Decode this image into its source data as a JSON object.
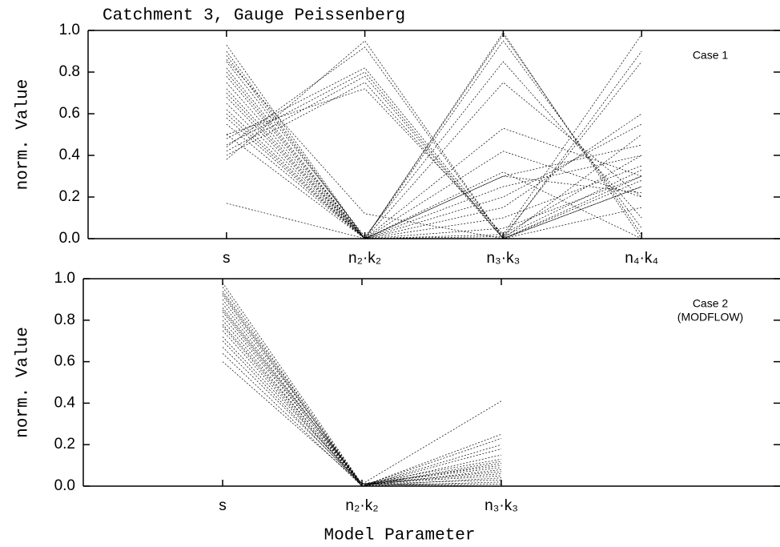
{
  "chart_data": [
    {
      "type": "parallel",
      "title": "Catchment 3, Gauge Peissenberg",
      "ylabel": "norm. Value",
      "annotation": [
        "Case 1"
      ],
      "categories": [
        "s",
        "n₂·k₂",
        "n₃·k₃",
        "n₄·k₄"
      ],
      "color": "#000000",
      "ylim": [
        0,
        1
      ],
      "yticks": [
        {
          "value": 0,
          "label": "0.0"
        },
        {
          "value": 0.2,
          "label": "0.2"
        },
        {
          "value": 0.4,
          "label": "0.4"
        },
        {
          "value": 0.6,
          "label": "0.6"
        },
        {
          "value": 0.8,
          "label": "0.8"
        },
        {
          "value": 1,
          "label": "1.0"
        }
      ],
      "series": [
        {
          "values": [
            0.93,
            0.0,
            0.99,
            0.0
          ]
        },
        {
          "values": [
            0.9,
            0.0,
            0.98,
            0.02
          ]
        },
        {
          "values": [
            0.88,
            0.0,
            0.95,
            0.05
          ]
        },
        {
          "values": [
            0.85,
            0.01,
            0.85,
            0.1
          ]
        },
        {
          "values": [
            0.82,
            0.0,
            0.75,
            0.2
          ]
        },
        {
          "values": [
            0.8,
            0.0,
            0.53,
            0.3
          ]
        },
        {
          "values": [
            0.78,
            0.0,
            0.32,
            0.0
          ]
        },
        {
          "values": [
            0.75,
            0.0,
            0.3,
            0.45
          ]
        },
        {
          "values": [
            0.72,
            0.0,
            0.2,
            0.55
          ]
        },
        {
          "values": [
            0.7,
            0.0,
            0.1,
            0.35
          ]
        },
        {
          "values": [
            0.68,
            0.0,
            0.05,
            0.3
          ]
        },
        {
          "values": [
            0.65,
            0.0,
            0.0,
            0.25
          ]
        },
        {
          "values": [
            0.62,
            0.0,
            0.02,
            0.98
          ]
        },
        {
          "values": [
            0.6,
            0.0,
            0.01,
            0.85
          ]
        },
        {
          "values": [
            0.58,
            0.0,
            0.15,
            0.6
          ]
        },
        {
          "values": [
            0.55,
            0.0,
            0.25,
            0.4
          ]
        },
        {
          "values": [
            0.5,
            0.0,
            0.42,
            0.2
          ]
        },
        {
          "values": [
            0.45,
            0.8,
            0.0,
            0.3
          ]
        },
        {
          "values": [
            0.42,
            0.78,
            0.0,
            0.28
          ]
        },
        {
          "values": [
            0.48,
            0.82,
            0.01,
            0.33
          ]
        },
        {
          "values": [
            0.4,
            0.75,
            0.0,
            0.5
          ]
        },
        {
          "values": [
            0.44,
            0.92,
            0.0,
            0.25
          ]
        },
        {
          "values": [
            0.5,
            0.72,
            0.02,
            0.4
          ]
        },
        {
          "values": [
            0.38,
            0.95,
            0.0,
            0.15
          ]
        },
        {
          "values": [
            0.17,
            0.0,
            0.3,
            0.22
          ]
        },
        {
          "values": [
            0.86,
            0.12,
            0.0,
            0.9
          ]
        }
      ]
    },
    {
      "type": "parallel",
      "ylabel": "norm. Value",
      "xlabel": "Model Parameter",
      "annotation": [
        "Case 2",
        "(MODFLOW)"
      ],
      "categories": [
        "s",
        "n₂·k₂",
        "n₃·k₃"
      ],
      "color": "#000000",
      "ylim": [
        0,
        1
      ],
      "yticks": [
        {
          "value": 0,
          "label": "0.0"
        },
        {
          "value": 0.2,
          "label": "0.2"
        },
        {
          "value": 0.4,
          "label": "0.4"
        },
        {
          "value": 0.6,
          "label": "0.6"
        },
        {
          "value": 0.8,
          "label": "0.8"
        },
        {
          "value": 1,
          "label": "1.0"
        }
      ],
      "series": [
        {
          "values": [
            0.98,
            0.01,
            0.0
          ]
        },
        {
          "values": [
            0.96,
            0.0,
            0.02
          ]
        },
        {
          "values": [
            0.94,
            0.01,
            0.05
          ]
        },
        {
          "values": [
            0.92,
            0.0,
            0.08
          ]
        },
        {
          "values": [
            0.9,
            0.01,
            0.1
          ]
        },
        {
          "values": [
            0.88,
            0.0,
            0.12
          ]
        },
        {
          "values": [
            0.86,
            0.01,
            0.03
          ]
        },
        {
          "values": [
            0.84,
            0.0,
            0.15
          ]
        },
        {
          "values": [
            0.82,
            0.01,
            0.06
          ]
        },
        {
          "values": [
            0.8,
            0.0,
            0.2
          ]
        },
        {
          "values": [
            0.78,
            0.01,
            0.01
          ]
        },
        {
          "values": [
            0.75,
            0.0,
            0.23
          ]
        },
        {
          "values": [
            0.72,
            0.01,
            0.09
          ]
        },
        {
          "values": [
            0.7,
            0.0,
            0.04
          ]
        },
        {
          "values": [
            0.67,
            0.01,
            0.13
          ]
        },
        {
          "values": [
            0.64,
            0.0,
            0.18
          ]
        },
        {
          "values": [
            0.6,
            0.01,
            0.41
          ]
        },
        {
          "values": [
            0.93,
            0.0,
            0.25
          ]
        },
        {
          "values": [
            0.85,
            0.01,
            0.07
          ]
        },
        {
          "values": [
            0.77,
            0.0,
            0.11
          ]
        }
      ]
    }
  ]
}
